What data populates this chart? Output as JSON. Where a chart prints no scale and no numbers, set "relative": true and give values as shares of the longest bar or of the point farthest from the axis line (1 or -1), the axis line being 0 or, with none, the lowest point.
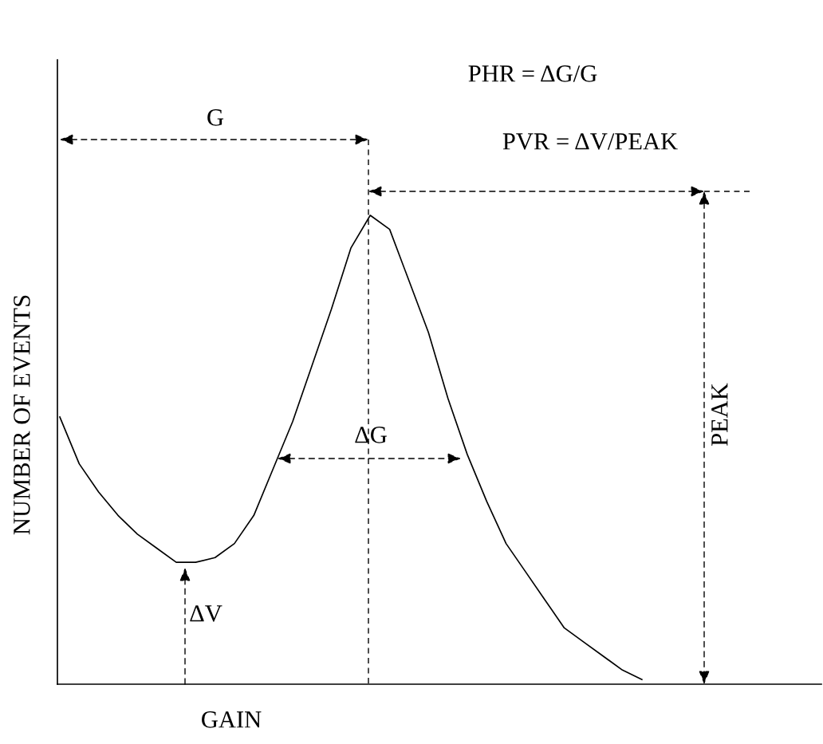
{
  "chart_data": {
    "type": "line",
    "relative": true,
    "xlabel": "GAIN",
    "ylabel": "NUMBER OF EVENTS",
    "color": "#000000",
    "marker": "none",
    "line_style": "solid",
    "categories": [
      null,
      null,
      null,
      null,
      null,
      null,
      null,
      null,
      null,
      null,
      null,
      null,
      null,
      null,
      null,
      null,
      null,
      null,
      null,
      null,
      null,
      null,
      null,
      null,
      null,
      null,
      null,
      null,
      null,
      null,
      null
    ],
    "values": [
      0.57,
      0.47,
      0.41,
      0.36,
      0.32,
      0.29,
      0.26,
      0.26,
      0.27,
      0.3,
      0.36,
      0.46,
      0.56,
      0.68,
      0.8,
      0.93,
      1.0,
      0.97,
      0.86,
      0.75,
      0.61,
      0.49,
      0.39,
      0.3,
      0.24,
      0.18,
      0.12,
      0.09,
      0.06,
      0.03,
      0.01
    ],
    "annotations": [
      "PHR = ΔG/G",
      "PVR = ΔV/PEAK",
      "G",
      "ΔG",
      "ΔV",
      "PEAK"
    ]
  }
}
